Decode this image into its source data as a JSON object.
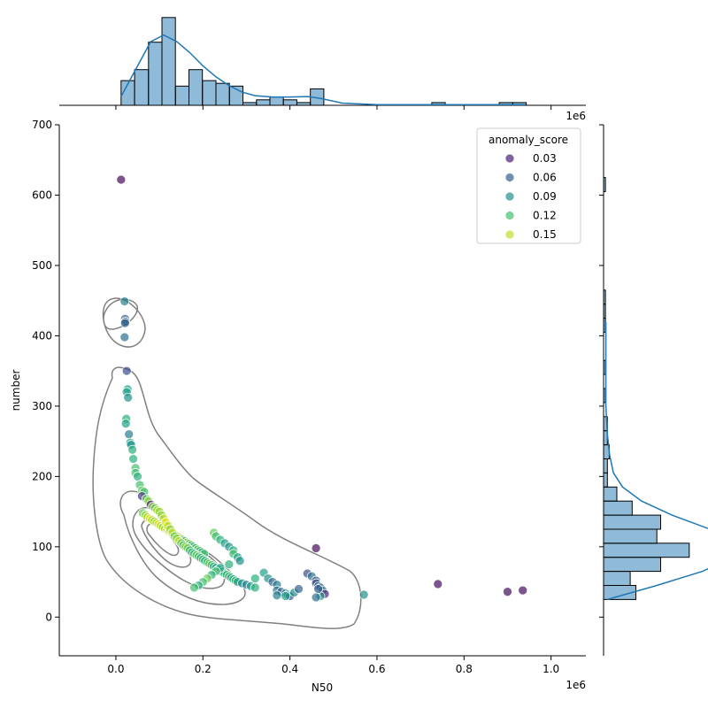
{
  "chart_data": {
    "type": "scatter",
    "x": [
      12000.0,
      20000.0,
      21000.0,
      22000.0,
      21000.0,
      20000.0,
      25000.0,
      27000.0,
      25000.0,
      28000.0,
      24000.0,
      23000.0,
      30000.0,
      33000.0,
      35000.0,
      38000.0,
      40000.0,
      45000.0,
      45000.0,
      50000.0,
      55000.0,
      60000.0,
      65000.0,
      60000.0,
      70000.0,
      75000.0,
      80000.0,
      85000.0,
      90000.0,
      95000.0,
      100000.0,
      62000.0,
      68000.0,
      72000.0,
      78000.0,
      83000.0,
      88000.0,
      93000.0,
      98000.0,
      103000.0,
      108000.0,
      113000.0,
      118000.0,
      123000.0,
      128000.0,
      133000.0,
      138000.0,
      143000.0,
      148000.0,
      153000.0,
      158000.0,
      163000.0,
      168000.0,
      173000.0,
      178000.0,
      183000.0,
      188000.0,
      193000.0,
      198000.0,
      203000.0,
      105000.0,
      110000.0,
      115000.0,
      120000.0,
      125000.0,
      130000.0,
      135000.0,
      140000.0,
      145000.0,
      150000.0,
      155000.0,
      160000.0,
      165000.0,
      170000.0,
      175000.0,
      180000.0,
      185000.0,
      190000.0,
      195000.0,
      200000.0,
      205000.0,
      210000.0,
      215000.0,
      220000.0,
      225000.0,
      230000.0,
      235000.0,
      240000.0,
      245000.0,
      250000.0,
      255000.0,
      260000.0,
      265000.0,
      270000.0,
      275000.0,
      280000.0,
      290000.0,
      300000.0,
      310000.0,
      320000.0,
      225000.0,
      230000.0,
      240000.0,
      250000.0,
      260000.0,
      270000.0,
      270000.0,
      280000.0,
      285000.0,
      260000.0,
      240000.0,
      230000.0,
      220000.0,
      210000.0,
      200000.0,
      190000.0,
      180000.0,
      340000.0,
      350000.0,
      360000.0,
      370000.0,
      370000.0,
      380000.0,
      390000.0,
      395000.0,
      400000.0,
      410000.0,
      420000.0,
      440000.0,
      450000.0,
      460000.0,
      460000.0,
      465000.0,
      470000.0,
      475000.0,
      480000.0,
      470000.0,
      460000.0,
      465000.0,
      570000.0,
      460000.0,
      740000.0,
      900000.0,
      935000.0,
      370000.0,
      390000.0,
      320000.0
    ],
    "y": [
      622,
      449,
      424,
      420,
      418,
      398,
      350,
      324,
      320,
      312,
      282,
      275,
      260,
      248,
      245,
      238,
      225,
      212,
      205,
      200,
      188,
      180,
      178,
      172,
      168,
      165,
      160,
      157,
      155,
      152,
      150,
      148,
      145,
      142,
      140,
      138,
      136,
      134,
      132,
      130,
      128,
      126,
      124,
      122,
      120,
      118,
      116,
      114,
      112,
      110,
      108,
      106,
      104,
      102,
      100,
      98,
      96,
      94,
      92,
      90,
      145,
      140,
      135,
      130,
      125,
      120,
      115,
      112,
      108,
      105,
      102,
      100,
      98,
      95,
      92,
      90,
      88,
      86,
      84,
      82,
      80,
      78,
      76,
      74,
      72,
      70,
      68,
      66,
      64,
      62,
      60,
      58,
      56,
      54,
      52,
      50,
      48,
      46,
      44,
      42,
      120,
      115,
      110,
      105,
      100,
      95,
      90,
      85,
      80,
      75,
      70,
      65,
      60,
      55,
      50,
      45,
      42,
      63,
      55,
      50,
      46,
      38,
      36,
      34,
      32,
      30,
      35,
      40,
      62,
      58,
      52,
      48,
      44,
      42,
      38,
      33,
      30,
      28,
      40,
      32,
      98,
      47,
      36,
      38,
      31,
      30,
      55
    ],
    "hue": [
      0.02,
      0.08,
      0.06,
      0.07,
      0.06,
      0.07,
      0.05,
      0.1,
      0.1,
      0.09,
      0.11,
      0.1,
      0.08,
      0.1,
      0.09,
      0.11,
      0.11,
      0.12,
      0.12,
      0.11,
      0.12,
      0.13,
      0.12,
      0.04,
      0.13,
      0.14,
      0.03,
      0.14,
      0.13,
      0.15,
      0.14,
      0.13,
      0.14,
      0.15,
      0.16,
      0.15,
      0.14,
      0.15,
      0.16,
      0.15,
      0.14,
      0.15,
      0.16,
      0.15,
      0.14,
      0.13,
      0.14,
      0.15,
      0.14,
      0.13,
      0.12,
      0.14,
      0.13,
      0.12,
      0.11,
      0.12,
      0.13,
      0.12,
      0.11,
      0.12,
      0.14,
      0.15,
      0.16,
      0.15,
      0.14,
      0.15,
      0.13,
      0.14,
      0.15,
      0.13,
      0.12,
      0.14,
      0.13,
      0.12,
      0.11,
      0.12,
      0.13,
      0.12,
      0.11,
      0.12,
      0.11,
      0.12,
      0.13,
      0.12,
      0.11,
      0.1,
      0.12,
      0.11,
      0.1,
      0.12,
      0.11,
      0.12,
      0.1,
      0.11,
      0.12,
      0.1,
      0.09,
      0.08,
      0.1,
      0.11,
      0.13,
      0.12,
      0.11,
      0.1,
      0.09,
      0.11,
      0.12,
      0.1,
      0.09,
      0.11,
      0.1,
      0.12,
      0.11,
      0.13,
      0.12,
      0.11,
      0.12,
      0.1,
      0.09,
      0.06,
      0.08,
      0.07,
      0.06,
      0.08,
      0.1,
      0.05,
      0.09,
      0.06,
      0.05,
      0.07,
      0.06,
      0.05,
      0.07,
      0.06,
      0.08,
      0.03,
      0.09,
      0.07,
      0.06,
      0.09,
      0.02,
      0.02,
      0.02,
      0.02,
      0.08,
      0.1,
      0.11
    ],
    "xlabel": "N50",
    "ylabel": "number",
    "xlim": [
      -130000.0,
      1080000.0
    ],
    "ylim": [
      -55,
      700
    ],
    "x_ticks": [
      0.0,
      0.2,
      0.4,
      0.6,
      0.8,
      1.0
    ],
    "x_ticks_labels": [
      "0.0",
      "0.2",
      "0.4",
      "0.6",
      "0.8",
      "1.0"
    ],
    "y_ticks": [
      0,
      100,
      200,
      300,
      400,
      500,
      600,
      700
    ],
    "x_offset_label": "1e6",
    "top_offset_label": "1e6",
    "legend": {
      "title": "anomaly_score",
      "placement": "top-right",
      "entries": [
        {
          "label": "0.03",
          "value": 0.03
        },
        {
          "label": "0.06",
          "value": 0.06
        },
        {
          "label": "0.09",
          "value": 0.09
        },
        {
          "label": "0.12",
          "value": 0.12
        },
        {
          "label": "0.15",
          "value": 0.15
        }
      ]
    },
    "hue_range": [
      0.015,
      0.165
    ],
    "marginal_x": {
      "bin_edges_1e6": [
        0.012,
        0.043,
        0.075,
        0.106,
        0.137,
        0.168,
        0.199,
        0.23,
        0.261,
        0.292,
        0.323,
        0.354,
        0.385,
        0.416,
        0.447,
        0.478,
        0.509,
        0.54,
        0.571,
        0.602,
        0.633,
        0.664,
        0.695,
        0.726,
        0.757,
        0.788,
        0.819,
        0.85,
        0.881,
        0.912,
        0.943
      ],
      "counts": [
        9,
        13,
        23,
        32,
        7,
        13,
        9,
        8,
        7,
        1,
        2,
        3,
        2,
        1,
        6,
        0,
        0,
        0,
        0,
        0,
        0,
        0,
        0,
        1,
        0,
        0,
        0,
        0,
        1,
        1
      ],
      "kde": [
        [
          0.012,
          2
        ],
        [
          0.05,
          9
        ],
        [
          0.08,
          14.5
        ],
        [
          0.11,
          16
        ],
        [
          0.14,
          14.5
        ],
        [
          0.17,
          12
        ],
        [
          0.2,
          9
        ],
        [
          0.23,
          6.5
        ],
        [
          0.26,
          4.5
        ],
        [
          0.29,
          3
        ],
        [
          0.32,
          2.2
        ],
        [
          0.36,
          1.9
        ],
        [
          0.4,
          1.9
        ],
        [
          0.44,
          2
        ],
        [
          0.47,
          1.6
        ],
        [
          0.52,
          0.5
        ],
        [
          0.6,
          0.15
        ],
        [
          0.7,
          0.15
        ],
        [
          0.8,
          0.15
        ],
        [
          0.9,
          0.15
        ],
        [
          0.94,
          0.15
        ]
      ]
    },
    "marginal_y": {
      "bin_edges": [
        25,
        45,
        65,
        85,
        105,
        125,
        145,
        165,
        185,
        205,
        225,
        245,
        265,
        285,
        305,
        325,
        345,
        365,
        385,
        405,
        425,
        445,
        465,
        485,
        505,
        525,
        545,
        565,
        585,
        605,
        625
      ],
      "counts": [
        17,
        14,
        30,
        45,
        28,
        30,
        15,
        7,
        2,
        2,
        3,
        2,
        2,
        0,
        1,
        0,
        1,
        0,
        0,
        1,
        1,
        1,
        0,
        0,
        0,
        0,
        0,
        0,
        0,
        1
      ],
      "kde": [
        [
          25,
          0.5
        ],
        [
          45,
          7
        ],
        [
          65,
          13
        ],
        [
          85,
          17
        ],
        [
          105,
          18
        ],
        [
          125,
          14
        ],
        [
          145,
          9
        ],
        [
          165,
          5
        ],
        [
          185,
          2.5
        ],
        [
          205,
          1.3
        ],
        [
          230,
          0.8
        ],
        [
          260,
          0.5
        ],
        [
          300,
          0.3
        ],
        [
          350,
          0.3
        ],
        [
          420,
          0.3
        ]
      ]
    }
  }
}
